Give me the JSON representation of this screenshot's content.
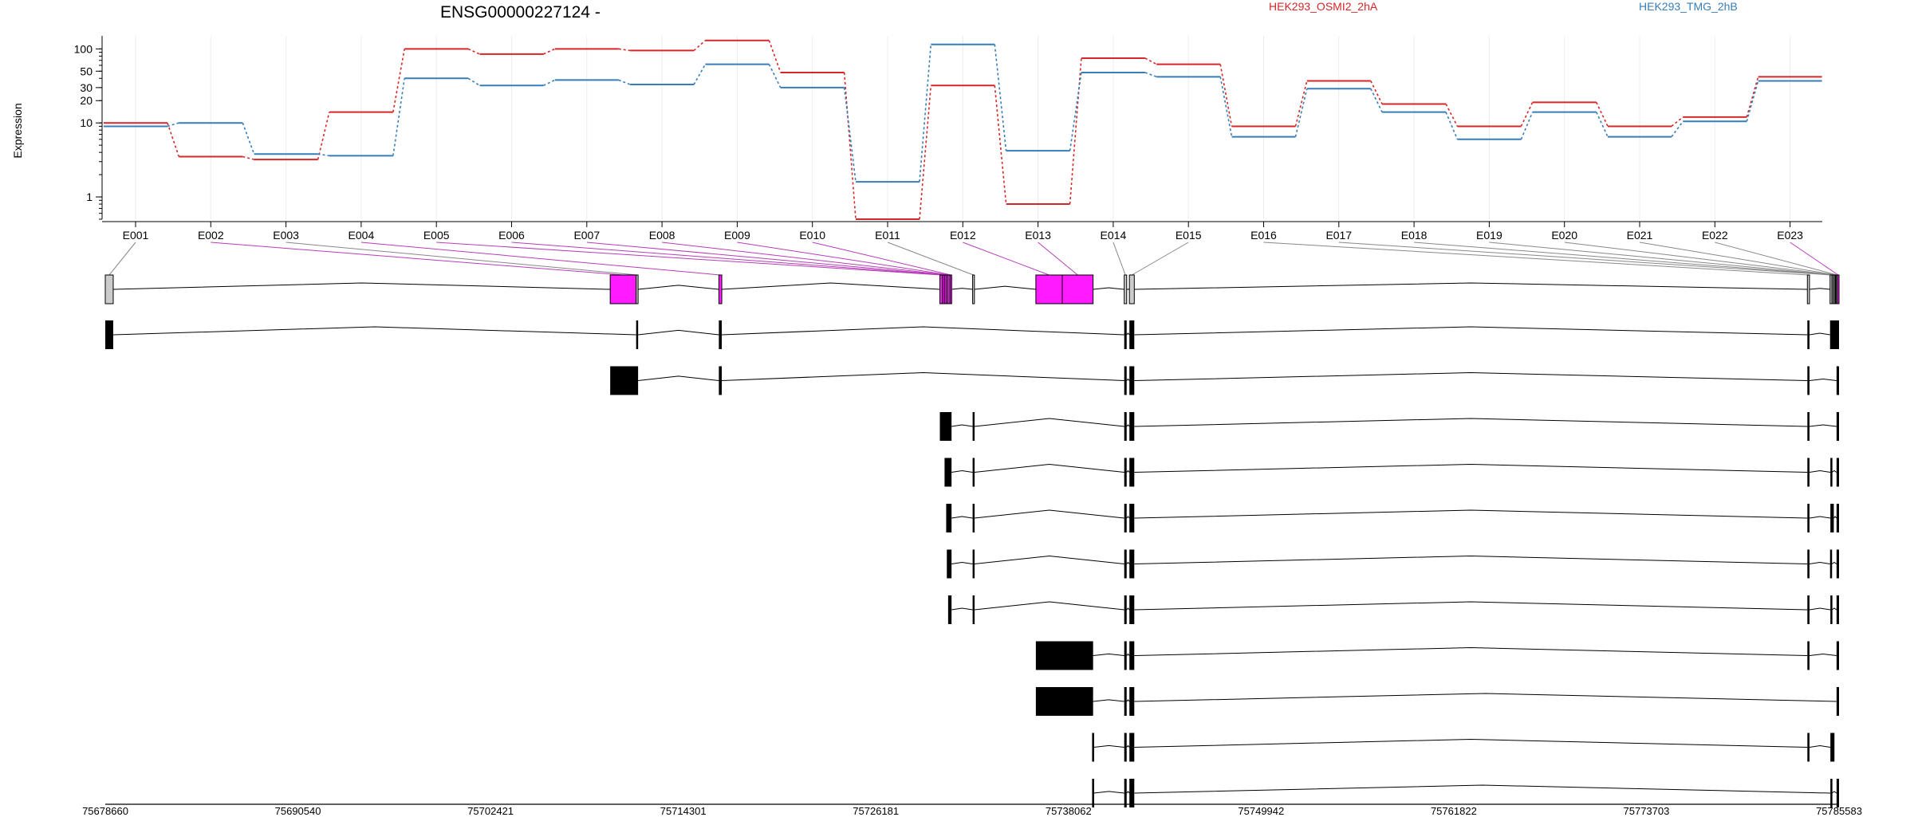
{
  "chart_data": {
    "type": "line",
    "title": "ENSG00000227124 -",
    "ylabel": "Expression",
    "xlabel": "",
    "yscale": "log",
    "ylim": [
      0.5,
      150
    ],
    "yticks": [
      1,
      10,
      20,
      30,
      50,
      100
    ],
    "ytick_labels": [
      "1",
      "10",
      "20",
      "30",
      "50",
      "100"
    ],
    "grid": "vertical lines at exon labels",
    "legend_placement": "top-right",
    "categories": [
      "E001",
      "E002",
      "E003",
      "E004",
      "E005",
      "E006",
      "E007",
      "E008",
      "E009",
      "E010",
      "E011",
      "E012",
      "E013",
      "E014",
      "E015",
      "E016",
      "E017",
      "E018",
      "E019",
      "E020",
      "E021",
      "E022",
      "E023"
    ],
    "series": [
      {
        "name": "HEK293_OSMI2_2hA",
        "color": "#d62728",
        "values": [
          10,
          3.5,
          3.2,
          14,
          100,
          85,
          100,
          95,
          130,
          48,
          0.5,
          32,
          0.8,
          75,
          62,
          9,
          37,
          18,
          9,
          19,
          9,
          12,
          42
        ]
      },
      {
        "name": "HEK293_TMG_2hB",
        "color": "#377eb8",
        "values": [
          9,
          10,
          3.8,
          3.6,
          40,
          32,
          38,
          33,
          62,
          30,
          1.6,
          115,
          4.2,
          48,
          42,
          6.5,
          29,
          14,
          6,
          14,
          6.5,
          10.5,
          37
        ]
      }
    ],
    "genomic_ticks": [
      "75678660",
      "75690540",
      "75702421",
      "75714301",
      "75726181",
      "75738062",
      "75749942",
      "75761822",
      "75773703",
      "75785583"
    ],
    "genomic_range": [
      75678660,
      75785583
    ],
    "exons": [
      {
        "id": "E001",
        "start": 75678660,
        "end": 75679150,
        "color": "#cccccc"
      },
      {
        "id": "E002",
        "start": 75709800,
        "end": 75711400,
        "color": "#ff1aff"
      },
      {
        "id": "E003",
        "start": 75711400,
        "end": 75711520,
        "color": "#cccccc"
      },
      {
        "id": "E004",
        "start": 75716500,
        "end": 75716680,
        "color": "#ff1aff"
      },
      {
        "id": "E005",
        "start": 75730130,
        "end": 75730290,
        "color": "#ff1aff"
      },
      {
        "id": "E006",
        "start": 75730290,
        "end": 75730410,
        "color": "#ff1aff"
      },
      {
        "id": "E007",
        "start": 75730410,
        "end": 75730520,
        "color": "#ff1aff"
      },
      {
        "id": "E008",
        "start": 75730520,
        "end": 75730620,
        "color": "#ff1aff"
      },
      {
        "id": "E009",
        "start": 75730620,
        "end": 75730760,
        "color": "#ff1aff"
      },
      {
        "id": "E010",
        "start": 75730760,
        "end": 75730850,
        "color": "#ff1aff"
      },
      {
        "id": "E011",
        "start": 75732150,
        "end": 75732260,
        "color": "#cccccc"
      },
      {
        "id": "E012",
        "start": 75736050,
        "end": 75737680,
        "color": "#ff1aff"
      },
      {
        "id": "E013",
        "start": 75737680,
        "end": 75739580,
        "color": "#ff1aff"
      },
      {
        "id": "E014",
        "start": 75741500,
        "end": 75741650,
        "color": "#cccccc"
      },
      {
        "id": "E015",
        "start": 75741820,
        "end": 75742120,
        "color": "#cccccc"
      },
      {
        "id": "E016",
        "start": 75783630,
        "end": 75783760,
        "color": "#cccccc"
      },
      {
        "id": "E017",
        "start": 75785030,
        "end": 75785140,
        "color": "#cccccc"
      },
      {
        "id": "E018",
        "start": 75785140,
        "end": 75785220,
        "color": "#cccccc"
      },
      {
        "id": "E019",
        "start": 75785220,
        "end": 75785300,
        "color": "#cccccc"
      },
      {
        "id": "E020",
        "start": 75785300,
        "end": 75785360,
        "color": "#cccccc"
      },
      {
        "id": "E021",
        "start": 75785360,
        "end": 75785420,
        "color": "#cccccc"
      },
      {
        "id": "E022",
        "start": 75785420,
        "end": 75785480,
        "color": "#cccccc"
      },
      {
        "id": "E023",
        "start": 75785480,
        "end": 75785583,
        "color": "#ff1aff"
      }
    ],
    "transcripts": [
      [
        [
          75678660,
          75679150
        ],
        [
          75711400,
          75711520
        ],
        [
          75716500,
          75716680
        ],
        [
          75741500,
          75741650
        ],
        [
          75741820,
          75742120
        ],
        [
          75783630,
          75783760
        ],
        [
          75785030,
          75785583
        ]
      ],
      [
        [
          75709800,
          75711520
        ],
        [
          75716500,
          75716680
        ],
        [
          75741500,
          75741650
        ],
        [
          75741820,
          75742120
        ],
        [
          75783630,
          75783760
        ],
        [
          75785430,
          75785583
        ]
      ],
      [
        [
          75730130,
          75730850
        ],
        [
          75732150,
          75732260
        ],
        [
          75741500,
          75741650
        ],
        [
          75741820,
          75742120
        ],
        [
          75783630,
          75783760
        ],
        [
          75785430,
          75785583
        ]
      ],
      [
        [
          75730420,
          75730850
        ],
        [
          75732150,
          75732260
        ],
        [
          75741500,
          75741650
        ],
        [
          75741820,
          75742120
        ],
        [
          75783630,
          75783760
        ],
        [
          75785050,
          75785140
        ],
        [
          75785430,
          75785583
        ]
      ],
      [
        [
          75730520,
          75730850
        ],
        [
          75732150,
          75732260
        ],
        [
          75741500,
          75741650
        ],
        [
          75741820,
          75742120
        ],
        [
          75783630,
          75783760
        ],
        [
          75785050,
          75785260
        ],
        [
          75785430,
          75785583
        ]
      ],
      [
        [
          75730560,
          75730850
        ],
        [
          75732150,
          75732260
        ],
        [
          75741500,
          75741650
        ],
        [
          75741820,
          75742120
        ],
        [
          75783630,
          75783760
        ],
        [
          75785030,
          75785140
        ],
        [
          75785430,
          75785583
        ]
      ],
      [
        [
          75730640,
          75730850
        ],
        [
          75732150,
          75732260
        ],
        [
          75741500,
          75741650
        ],
        [
          75741820,
          75742120
        ],
        [
          75783630,
          75783760
        ],
        [
          75785050,
          75785140
        ],
        [
          75785430,
          75785583
        ]
      ],
      [
        [
          75736050,
          75739580
        ],
        [
          75741500,
          75741650
        ],
        [
          75741820,
          75742120
        ],
        [
          75783630,
          75783760
        ],
        [
          75785430,
          75785583
        ]
      ],
      [
        [
          75736050,
          75739580
        ],
        [
          75741500,
          75741650
        ],
        [
          75741820,
          75742120
        ],
        [
          75785430,
          75785583
        ]
      ],
      [
        [
          75739520,
          75739620
        ],
        [
          75741500,
          75741650
        ],
        [
          75741820,
          75742120
        ],
        [
          75783630,
          75783760
        ],
        [
          75785050,
          75785300
        ]
      ],
      [
        [
          75739520,
          75739620
        ],
        [
          75741500,
          75741650
        ],
        [
          75741820,
          75742120
        ],
        [
          75785050,
          75785140
        ],
        [
          75785430,
          75785583
        ]
      ]
    ]
  }
}
